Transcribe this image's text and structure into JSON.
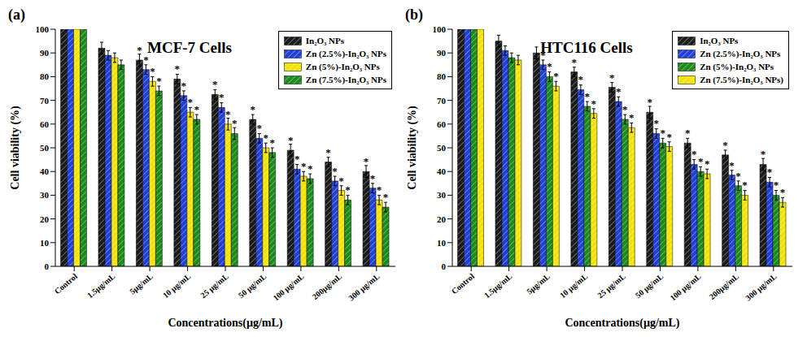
{
  "chart_data": [
    {
      "type": "bar",
      "panel": "(a)",
      "title": "MCF-7 Cells",
      "x_label": "Concentrations(µg/mL)",
      "y_label": "Cell viability (%)",
      "categories": [
        "Control",
        "1.5µg/mL",
        "5µg/mL",
        "10 µg/mL",
        "25 µg/mL",
        "50 µg/mL",
        "100 µg/mL",
        "200µg/mL",
        "300 µg/mL"
      ],
      "annotation": "*",
      "series": [
        {
          "name": "In₂O₃ NPs",
          "color": "#1a1a1a",
          "values": [
            100,
            92,
            87,
            79,
            72.5,
            62,
            49,
            44,
            40
          ],
          "errors": [
            0,
            2.5,
            2.5,
            2,
            2,
            2,
            2.5,
            2,
            2.5
          ],
          "significant": [
            false,
            false,
            true,
            true,
            true,
            true,
            true,
            true,
            true
          ]
        },
        {
          "name": "Zn (2.5%)-In₂O₃ NPs",
          "color": "#1f3fd6",
          "values": [
            100,
            89,
            83,
            72,
            67,
            54,
            41,
            36,
            33
          ],
          "errors": [
            0,
            2,
            2,
            2,
            2,
            2,
            2,
            2,
            2
          ],
          "significant": [
            false,
            false,
            true,
            true,
            true,
            true,
            true,
            true,
            true
          ]
        },
        {
          "name": "Zn (5%)-In₂O₃ NPs",
          "color": "#f2e205",
          "values": [
            100,
            88,
            78,
            65,
            60,
            50,
            38,
            32,
            28
          ],
          "errors": [
            0,
            2,
            2,
            2,
            2.5,
            2,
            2,
            2,
            2
          ],
          "significant": [
            false,
            false,
            true,
            true,
            true,
            true,
            true,
            true,
            true
          ]
        },
        {
          "name": "Zn (7.5%)-In₂O₃ NPs",
          "color": "#1a8a1a",
          "values": [
            100,
            85,
            74,
            62,
            56,
            48,
            37,
            28,
            25
          ],
          "errors": [
            0,
            2,
            2,
            2,
            2.5,
            2,
            2,
            2,
            2
          ],
          "significant": [
            false,
            false,
            true,
            true,
            true,
            true,
            true,
            true,
            true
          ]
        }
      ],
      "ylim": [
        0,
        100
      ],
      "yticks": [
        0,
        10,
        20,
        30,
        40,
        50,
        60,
        70,
        80,
        90,
        100
      ],
      "grid": false,
      "legend": "upper right"
    },
    {
      "type": "bar",
      "panel": "(b)",
      "title": "HTC116 Cells",
      "x_label": "Concentrations(µg/mL)",
      "y_label": "Cell viability (%)",
      "categories": [
        "Control",
        "1.5µg/mL",
        "5µg/mL",
        "10 µg/mL",
        "25 µg/mL",
        "50 µg/mL",
        "100 µg/mL",
        "200µg/mL",
        "300 µg/mL"
      ],
      "annotation": "*",
      "series": [
        {
          "name": "In₂O₃ NPs",
          "color": "#1a1a1a",
          "values": [
            100,
            95,
            90,
            82,
            75.5,
            65,
            52,
            47,
            43
          ],
          "errors": [
            0,
            2.5,
            2.5,
            2,
            2,
            2.5,
            2,
            2,
            2.5
          ],
          "significant": [
            false,
            false,
            false,
            true,
            true,
            true,
            true,
            true,
            true
          ]
        },
        {
          "name": "Zn (2.5%)-In₂O₃ NPs",
          "color": "#1f3fd6",
          "values": [
            100,
            91,
            85,
            74.5,
            69.5,
            56,
            43,
            38.5,
            35.5
          ],
          "errors": [
            0,
            2,
            2,
            2,
            2,
            2,
            2,
            2,
            2
          ],
          "significant": [
            false,
            false,
            true,
            true,
            true,
            true,
            true,
            true,
            true
          ]
        },
        {
          "name": "Zn (5%)-In₂O₃ NPs",
          "color": "#1a8a1a",
          "values": [
            100,
            88,
            80,
            67.5,
            62,
            52,
            40,
            34,
            30
          ],
          "errors": [
            0,
            2,
            2,
            2,
            2,
            2,
            2,
            2,
            2
          ],
          "significant": [
            false,
            false,
            true,
            true,
            true,
            true,
            true,
            true,
            true
          ]
        },
        {
          "name": "Zn (7.5%)-In₂O₃ NPs)",
          "color": "#f2e205",
          "values": [
            100,
            87,
            76,
            64.5,
            58.5,
            50.5,
            39,
            30,
            27
          ],
          "errors": [
            0,
            2,
            2,
            2,
            2,
            2,
            2,
            2,
            2
          ],
          "significant": [
            false,
            false,
            true,
            true,
            true,
            true,
            true,
            true,
            true
          ]
        }
      ],
      "ylim": [
        0,
        100
      ],
      "yticks": [
        0,
        10,
        20,
        30,
        40,
        50,
        60,
        70,
        80,
        90,
        100
      ],
      "grid": false,
      "legend": "upper right"
    }
  ]
}
